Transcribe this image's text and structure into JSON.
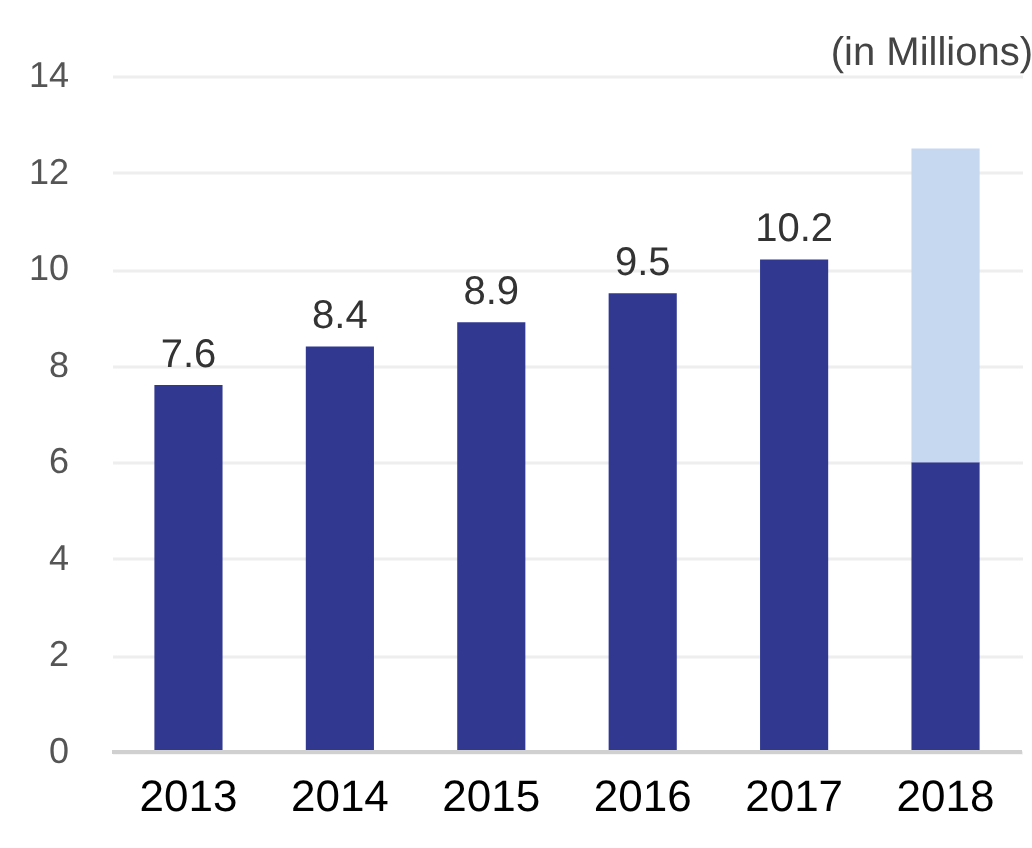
{
  "chart_data": {
    "type": "bar",
    "ylabel": "(in Millions)",
    "categories": [
      "2013",
      "2014",
      "2015",
      "2016",
      "2017",
      "2018"
    ],
    "stacked": true,
    "series": [
      {
        "color": "#303890",
        "values": [
          7.6,
          8.4,
          8.9,
          9.5,
          10.2,
          6.0
        ],
        "value_labels": [
          "7.6",
          "8.4",
          "8.9",
          "9.5",
          "10.2",
          null
        ]
      },
      {
        "color": "#c5d8f0",
        "values": [
          null,
          null,
          null,
          null,
          null,
          6.5
        ]
      }
    ],
    "ylim": [
      0,
      14
    ],
    "yticks": [
      0,
      2,
      4,
      6,
      8,
      10,
      12,
      14
    ],
    "grid": "y"
  }
}
